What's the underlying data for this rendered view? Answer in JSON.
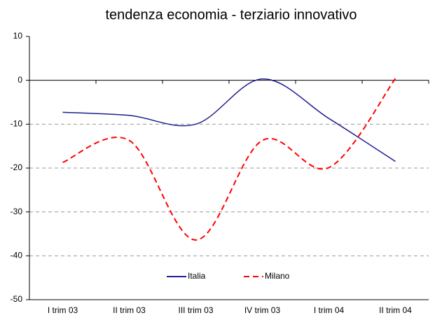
{
  "chart_data": {
    "type": "line",
    "title": "tendenza economia - terziario innovativo",
    "categories": [
      "I trim 03",
      "II trim 03",
      "III trim 03",
      "IV trim 03",
      "I trim 04",
      "II trim 04"
    ],
    "series": [
      {
        "name": "Italia",
        "color": "#1f1f8f",
        "dash": "solid",
        "values": [
          -7.3,
          -8,
          -10,
          0.3,
          -8.7,
          -18.5
        ]
      },
      {
        "name": "Milano",
        "color": "#ff0000",
        "dash": "dashed",
        "values": [
          -18.7,
          -13.7,
          -36.4,
          -13.7,
          -19.9,
          0.4
        ]
      }
    ],
    "ylim": [
      -50,
      10
    ],
    "yticks": [
      -50,
      -40,
      -30,
      -20,
      -10,
      0,
      10
    ],
    "grid": true,
    "smooth": true,
    "legend": "bottom"
  }
}
